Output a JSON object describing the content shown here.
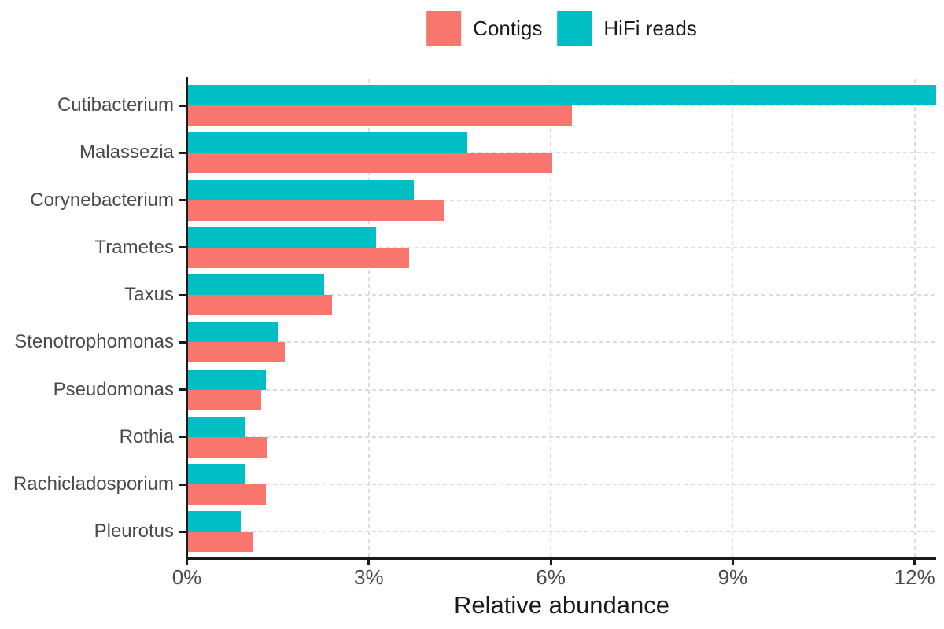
{
  "figure": {
    "background": "#ffffff"
  },
  "chart_data": {
    "type": "bar",
    "orientation": "horizontal",
    "title": "",
    "xlabel": "Relative abundance",
    "ylabel": "",
    "categories": [
      "Cutibacterium",
      "Malassezia",
      "Corynebacterium",
      "Trametes",
      "Taxus",
      "Stenotrophomonas",
      "Pseudomonas",
      "Rothia",
      "Rachicladosporium",
      "Pleurotus"
    ],
    "series": [
      {
        "name": "Contigs",
        "color": "#F8766D",
        "values": [
          6.33,
          6.0,
          4.22,
          3.65,
          2.37,
          1.59,
          1.21,
          1.31,
          1.28,
          1.07
        ]
      },
      {
        "name": "HiFi reads",
        "color": "#00BFC4",
        "values": [
          12.35,
          4.6,
          3.72,
          3.1,
          2.25,
          1.48,
          1.28,
          0.95,
          0.94,
          0.87
        ]
      }
    ],
    "x_ticks": [
      {
        "value": 0,
        "label": "0%"
      },
      {
        "value": 3,
        "label": "3%"
      },
      {
        "value": 6,
        "label": "6%"
      },
      {
        "value": 9,
        "label": "9%"
      },
      {
        "value": 12,
        "label": "12%"
      }
    ],
    "xlim": [
      0,
      12.35
    ],
    "legend_position": "top",
    "grid": {
      "style": "dashed",
      "color": "#dcdcdc",
      "vertical_at": [
        3,
        6,
        9,
        12
      ],
      "horizontal_at": "category-centers"
    },
    "axis_color": "#1a1a1a",
    "tick_label_color": "#4a4a4a"
  }
}
